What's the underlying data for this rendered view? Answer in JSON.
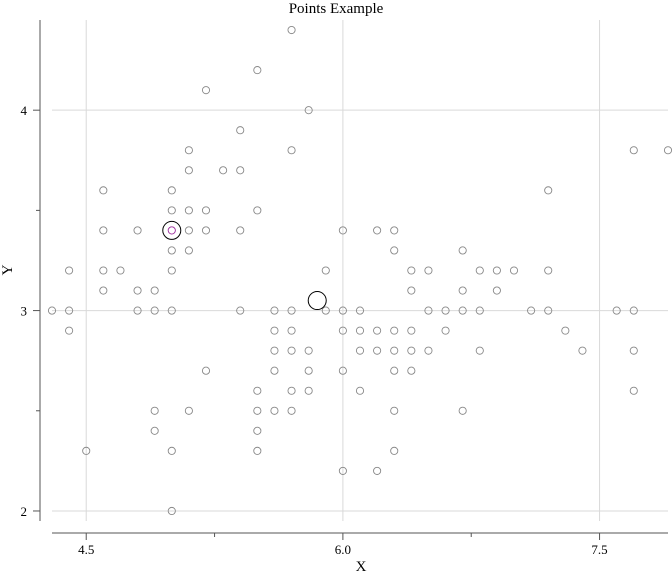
{
  "chart_data": {
    "type": "scatter",
    "title": "Points Example",
    "xlabel": "X",
    "ylabel": "Y",
    "xlim": [
      4.3,
      7.9
    ],
    "ylim": [
      1.95,
      4.45
    ],
    "x_ticks": [
      {
        "value": 4.5,
        "label": "4.5"
      },
      {
        "value": 6.0,
        "label": "6.0"
      },
      {
        "value": 7.5,
        "label": "7.5"
      }
    ],
    "x_minor_ticks": [
      5.25,
      6.75
    ],
    "y_ticks": [
      {
        "value": 2,
        "label": "2"
      },
      {
        "value": 3,
        "label": "3"
      },
      {
        "value": 4,
        "label": "4"
      }
    ],
    "y_minor_ticks": [
      2.5,
      3.5
    ],
    "grid": true,
    "colors": {
      "points": "#888888",
      "highlight": "#9b2a9b",
      "marker": "#000000"
    },
    "series": [
      {
        "values": [
          [
            4.3,
            3.0
          ],
          [
            4.4,
            3.0
          ],
          [
            4.4,
            2.9
          ],
          [
            4.4,
            3.2
          ],
          [
            4.5,
            2.3
          ],
          [
            4.6,
            3.6
          ],
          [
            4.6,
            3.4
          ],
          [
            4.6,
            3.2
          ],
          [
            4.6,
            3.1
          ],
          [
            4.7,
            3.2
          ],
          [
            4.8,
            3.4
          ],
          [
            4.8,
            3.1
          ],
          [
            4.8,
            3.0
          ],
          [
            4.9,
            3.1
          ],
          [
            4.9,
            3.0
          ],
          [
            4.9,
            2.5
          ],
          [
            4.9,
            2.4
          ],
          [
            5.0,
            3.6
          ],
          [
            5.0,
            3.5
          ],
          [
            5.0,
            3.4
          ],
          [
            5.0,
            3.3
          ],
          [
            5.0,
            3.2
          ],
          [
            5.0,
            3.0
          ],
          [
            5.0,
            2.3
          ],
          [
            5.0,
            2.0
          ],
          [
            5.1,
            3.8
          ],
          [
            5.1,
            3.7
          ],
          [
            5.1,
            3.5
          ],
          [
            5.1,
            3.4
          ],
          [
            5.1,
            3.3
          ],
          [
            5.1,
            2.5
          ],
          [
            5.2,
            4.1
          ],
          [
            5.2,
            3.5
          ],
          [
            5.2,
            3.4
          ],
          [
            5.2,
            2.7
          ],
          [
            5.3,
            3.7
          ],
          [
            5.4,
            3.9
          ],
          [
            5.4,
            3.7
          ],
          [
            5.4,
            3.4
          ],
          [
            5.4,
            3.0
          ],
          [
            5.5,
            4.2
          ],
          [
            5.5,
            3.5
          ],
          [
            5.5,
            2.6
          ],
          [
            5.5,
            2.5
          ],
          [
            5.5,
            2.4
          ],
          [
            5.5,
            2.3
          ],
          [
            5.6,
            3.0
          ],
          [
            5.6,
            2.9
          ],
          [
            5.6,
            2.8
          ],
          [
            5.6,
            2.7
          ],
          [
            5.6,
            2.5
          ],
          [
            5.7,
            4.4
          ],
          [
            5.7,
            3.8
          ],
          [
            5.7,
            3.0
          ],
          [
            5.7,
            2.9
          ],
          [
            5.7,
            2.8
          ],
          [
            5.7,
            2.6
          ],
          [
            5.7,
            2.5
          ],
          [
            5.8,
            4.0
          ],
          [
            5.8,
            2.8
          ],
          [
            5.8,
            2.7
          ],
          [
            5.8,
            2.6
          ],
          [
            5.9,
            3.2
          ],
          [
            5.9,
            3.0
          ],
          [
            6.0,
            3.4
          ],
          [
            6.0,
            3.0
          ],
          [
            6.0,
            2.9
          ],
          [
            6.0,
            2.7
          ],
          [
            6.0,
            2.2
          ],
          [
            6.1,
            3.0
          ],
          [
            6.1,
            2.9
          ],
          [
            6.1,
            2.8
          ],
          [
            6.1,
            2.6
          ],
          [
            6.2,
            3.4
          ],
          [
            6.2,
            2.9
          ],
          [
            6.2,
            2.8
          ],
          [
            6.2,
            2.2
          ],
          [
            6.3,
            3.4
          ],
          [
            6.3,
            3.3
          ],
          [
            6.3,
            2.9
          ],
          [
            6.3,
            2.8
          ],
          [
            6.3,
            2.7
          ],
          [
            6.3,
            2.5
          ],
          [
            6.3,
            2.3
          ],
          [
            6.4,
            3.2
          ],
          [
            6.4,
            3.1
          ],
          [
            6.4,
            2.9
          ],
          [
            6.4,
            2.8
          ],
          [
            6.4,
            2.7
          ],
          [
            6.5,
            3.2
          ],
          [
            6.5,
            3.0
          ],
          [
            6.5,
            2.8
          ],
          [
            6.6,
            3.0
          ],
          [
            6.6,
            2.9
          ],
          [
            6.7,
            3.3
          ],
          [
            6.7,
            3.1
          ],
          [
            6.7,
            3.0
          ],
          [
            6.7,
            2.5
          ],
          [
            6.8,
            3.2
          ],
          [
            6.8,
            3.0
          ],
          [
            6.8,
            2.8
          ],
          [
            6.9,
            3.2
          ],
          [
            6.9,
            3.1
          ],
          [
            7.0,
            3.2
          ],
          [
            7.1,
            3.0
          ],
          [
            7.2,
            3.6
          ],
          [
            7.2,
            3.2
          ],
          [
            7.2,
            3.0
          ],
          [
            7.3,
            2.9
          ],
          [
            7.4,
            2.8
          ],
          [
            7.6,
            3.0
          ],
          [
            7.7,
            3.8
          ],
          [
            7.7,
            3.0
          ],
          [
            7.7,
            2.8
          ],
          [
            7.7,
            2.6
          ],
          [
            7.9,
            3.8
          ]
        ]
      }
    ],
    "highlight_point": [
      5.0,
      3.4
    ],
    "markers": [
      {
        "x": 5.0,
        "y": 3.4
      },
      {
        "x": 5.85,
        "y": 3.05
      }
    ]
  }
}
